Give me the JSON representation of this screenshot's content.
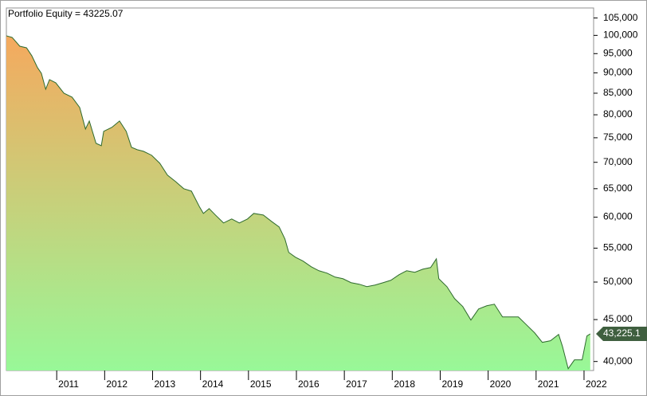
{
  "chart_data": {
    "type": "area",
    "title": "Portfolio Equity = 43225.07",
    "x": [
      2009.95,
      2010.07,
      2010.23,
      2010.37,
      2010.48,
      2010.6,
      2010.68,
      2010.77,
      2010.85,
      2010.98,
      2011.15,
      2011.32,
      2011.48,
      2011.6,
      2011.68,
      2011.82,
      2011.93,
      2011.98,
      2012.15,
      2012.31,
      2012.45,
      2012.56,
      2012.68,
      2012.81,
      2012.98,
      2013.15,
      2013.31,
      2013.48,
      2013.65,
      2013.81,
      2013.98,
      2014.06,
      2014.18,
      2014.31,
      2014.48,
      2014.65,
      2014.81,
      2014.98,
      2015.11,
      2015.31,
      2015.48,
      2015.64,
      2015.76,
      2015.84,
      2015.98,
      2016.14,
      2016.31,
      2016.47,
      2016.64,
      2016.81,
      2016.97,
      2017.14,
      2017.31,
      2017.47,
      2017.64,
      2017.81,
      2017.97,
      2018.14,
      2018.3,
      2018.47,
      2018.64,
      2018.8,
      2018.92,
      2018.97,
      2019.14,
      2019.3,
      2019.47,
      2019.64,
      2019.8,
      2019.97,
      2020.13,
      2020.3,
      2020.47,
      2020.63,
      2020.8,
      2020.97,
      2021.13,
      2021.3,
      2021.47,
      2021.55,
      2021.67,
      2021.8,
      2021.96,
      2022.06,
      2022.13
    ],
    "series": [
      {
        "color": "#2e6b2e",
        "fill_colors": [
          "#f5a95e",
          "#98f898"
        ],
        "values": [
          99880,
          99420,
          97000,
          96570,
          94440,
          91320,
          89900,
          85960,
          88300,
          87520,
          85010,
          84060,
          81650,
          76870,
          78610,
          73840,
          73340,
          76360,
          77220,
          78610,
          76360,
          73020,
          72530,
          72200,
          71400,
          69820,
          67520,
          66320,
          65000,
          64560,
          61740,
          60640,
          61460,
          60370,
          59040,
          59700,
          59040,
          59700,
          60640,
          60370,
          59300,
          58380,
          56450,
          54350,
          53620,
          53030,
          52200,
          51620,
          51270,
          50700,
          50480,
          49920,
          49700,
          49360,
          49580,
          49920,
          50250,
          51040,
          51620,
          51390,
          51850,
          52080,
          53380,
          50480,
          49360,
          47730,
          46680,
          44940,
          46360,
          46780,
          46990,
          45340,
          45340,
          45340,
          44340,
          43350,
          42210,
          42400,
          43160,
          41740,
          39200,
          40180,
          40180,
          42970,
          43225.07
        ]
      }
    ],
    "annotations": [
      {
        "value": 43225.07,
        "label": "43,225.1"
      }
    ],
    "xlim": [
      2009.95,
      2022.2
    ],
    "xticks": [
      2011,
      2012,
      2013,
      2014,
      2015,
      2016,
      2017,
      2018,
      2019,
      2020,
      2021,
      2022
    ],
    "ylim": [
      39000,
      108000
    ],
    "log_y": true,
    "yticks": [
      {
        "value": 40000,
        "label": "40,000"
      },
      {
        "value": 45000,
        "label": "45,000"
      },
      {
        "value": 50000,
        "label": "50,000"
      },
      {
        "value": 55000,
        "label": "55,000"
      },
      {
        "value": 60000,
        "label": "60,000"
      },
      {
        "value": 65000,
        "label": "65,000"
      },
      {
        "value": 70000,
        "label": "70,000"
      },
      {
        "value": 75000,
        "label": "75,000"
      },
      {
        "value": 80000,
        "label": "80,000"
      },
      {
        "value": 85000,
        "label": "85,000"
      },
      {
        "value": 90000,
        "label": "90,000"
      },
      {
        "value": 95000,
        "label": "95,000"
      },
      {
        "value": 100000,
        "label": "100,000"
      },
      {
        "value": 105000,
        "label": "105,000"
      }
    ]
  }
}
